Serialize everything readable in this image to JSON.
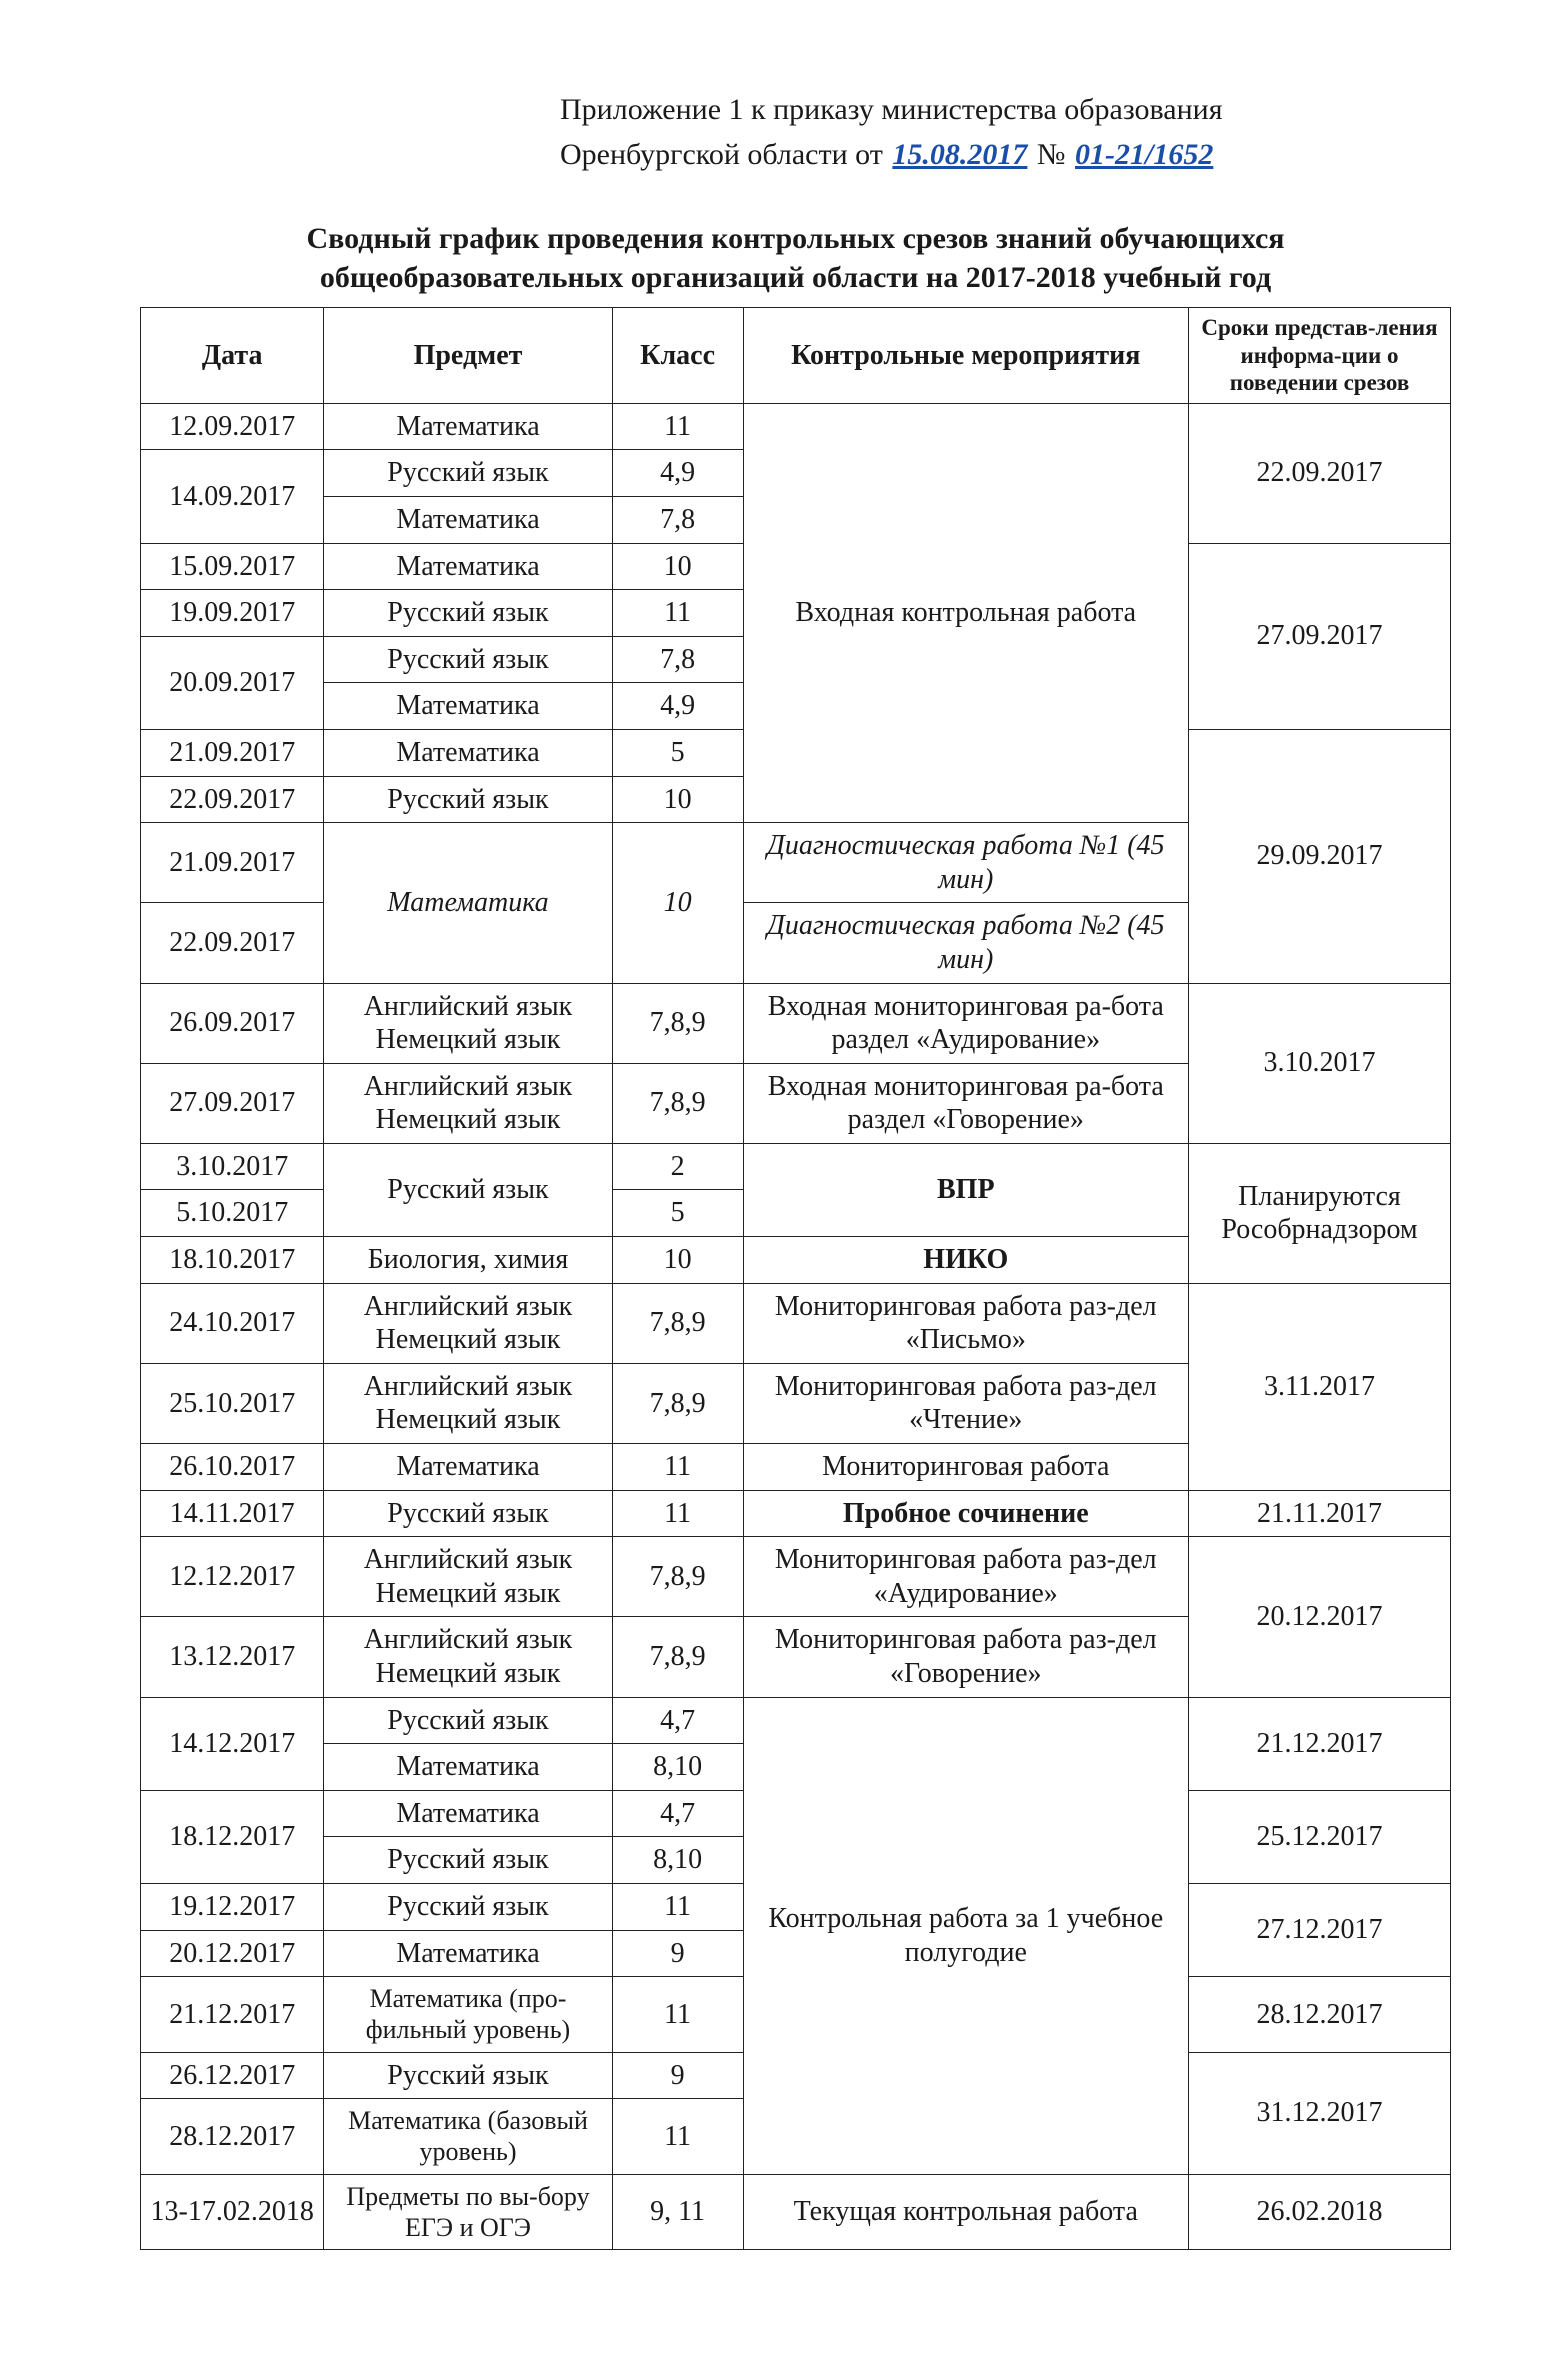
{
  "header": {
    "line1": "Приложение 1 к приказу министерства образования",
    "line2_prefix": "Оренбургской области  от",
    "handwritten_date": "15.08.2017",
    "number_label": "№",
    "handwritten_number": "01-21/1652"
  },
  "title": {
    "line1": "Сводный график проведения контрольных срезов знаний обучающихся",
    "line2": "общеобразовательных организаций области на 2017-2018 учебный год"
  },
  "columns": {
    "date": "Дата",
    "subject": "Предмет",
    "class": "Класс",
    "event": "Контрольные мероприятия",
    "deadline": "Сроки представ-ления информа-ции о поведении срезов"
  },
  "events": {
    "entry": "Входная контрольная работа",
    "diag1": "Диагностическая работа №1 (45 мин)",
    "diag2": "Диагностическая работа №2 (45 мин)",
    "entry_mon_listen": "Входная мониторинговая ра-бота раздел «Аудирование»",
    "entry_mon_speak": "Входная мониторинговая ра-бота раздел «Говорение»",
    "vpr": "ВПР",
    "niko": "НИКО",
    "mon_writing": "Мониторинговая работа раз-дел «Письмо»",
    "mon_reading": "Мониторинговая работа раз-дел «Чтение»",
    "mon_work": "Мониторинговая работа",
    "trial_essay": "Пробное сочинение",
    "mon_listen": "Мониторинговая работа раз-дел «Аудирование»",
    "mon_speak": "Мониторинговая работа раз-дел «Говорение»",
    "half_year": "Контрольная работа за 1 учебное полугодие",
    "current": "Текущая контрольная работа"
  },
  "deadlines": {
    "d1": "22.09.2017",
    "d2": "27.09.2017",
    "d3": "29.09.2017",
    "d4": "3.10.2017",
    "d5": "Планируются Рособрнадзором",
    "d6": "3.11.2017",
    "d7": "21.11.2017",
    "d8": "20.12.2017",
    "d9": "21.12.2017",
    "d10": "25.12.2017",
    "d11": "27.12.2017",
    "d12": "28.12.2017",
    "d13": "31.12.2017",
    "d14": "26.02.2018"
  },
  "rows": {
    "r1": {
      "date": "12.09.2017",
      "subject": "Математика",
      "class": "11"
    },
    "r2": {
      "date": "14.09.2017",
      "subject": "Русский язык",
      "class": "4,9"
    },
    "r3": {
      "subject": "Математика",
      "class": "7,8"
    },
    "r4": {
      "date": "15.09.2017",
      "subject": "Математика",
      "class": "10"
    },
    "r5": {
      "date": "19.09.2017",
      "subject": "Русский язык",
      "class": "11"
    },
    "r6": {
      "date": "20.09.2017",
      "subject": "Русский язык",
      "class": "7,8"
    },
    "r7": {
      "subject": "Математика",
      "class": "4,9"
    },
    "r8": {
      "date": "21.09.2017",
      "subject": "Математика",
      "class": "5"
    },
    "r9": {
      "date": "22.09.2017",
      "subject": "Русский язык",
      "class": "10"
    },
    "r10": {
      "date": "21.09.2017",
      "subject": "Математика",
      "class": "10"
    },
    "r11": {
      "date": "22.09.2017"
    },
    "r12": {
      "date": "26.09.2017",
      "subject": "Английский язык Немецкий язык",
      "class": "7,8,9"
    },
    "r13": {
      "date": "27.09.2017",
      "subject": "Английский язык Немецкий язык",
      "class": "7,8,9"
    },
    "r14": {
      "date": "3.10.2017",
      "subject": "Русский язык",
      "class": "2"
    },
    "r15": {
      "date": "5.10.2017",
      "class": "5"
    },
    "r16": {
      "date": "18.10.2017",
      "subject": "Биология, химия",
      "class": "10"
    },
    "r17": {
      "date": "24.10.2017",
      "subject": "Английский язык Немецкий язык",
      "class": "7,8,9"
    },
    "r18": {
      "date": "25.10.2017",
      "subject": "Английский язык Немецкий язык",
      "class": "7,8,9"
    },
    "r19": {
      "date": "26.10.2017",
      "subject": "Математика",
      "class": "11"
    },
    "r20": {
      "date": "14.11.2017",
      "subject": "Русский язык",
      "class": "11"
    },
    "r21": {
      "date": "12.12.2017",
      "subject": "Английский язык Немецкий язык",
      "class": "7,8,9"
    },
    "r22": {
      "date": "13.12.2017",
      "subject": "Английский язык Немецкий язык",
      "class": "7,8,9"
    },
    "r23": {
      "date": "14.12.2017",
      "subject": "Русский язык",
      "class": "4,7"
    },
    "r24": {
      "subject": "Математика",
      "class": "8,10"
    },
    "r25": {
      "date": "18.12.2017",
      "subject": "Математика",
      "class": "4,7"
    },
    "r26": {
      "subject": "Русский язык",
      "class": "8,10"
    },
    "r27": {
      "date": "19.12.2017",
      "subject": "Русский язык",
      "class": "11"
    },
    "r28": {
      "date": "20.12.2017",
      "subject": "Математика",
      "class": "9"
    },
    "r29": {
      "date": "21.12.2017",
      "subject": "Математика (про-фильный уровень)",
      "class": "11"
    },
    "r30": {
      "date": "26.12.2017",
      "subject": "Русский язык",
      "class": "9"
    },
    "r31": {
      "date": "28.12.2017",
      "subject": "Математика (базовый уровень)",
      "class": "11"
    },
    "r32": {
      "date": "13-17.02.2018",
      "subject": "Предметы по вы-бору ЕГЭ и ОГЭ",
      "class": "9, 11"
    }
  }
}
